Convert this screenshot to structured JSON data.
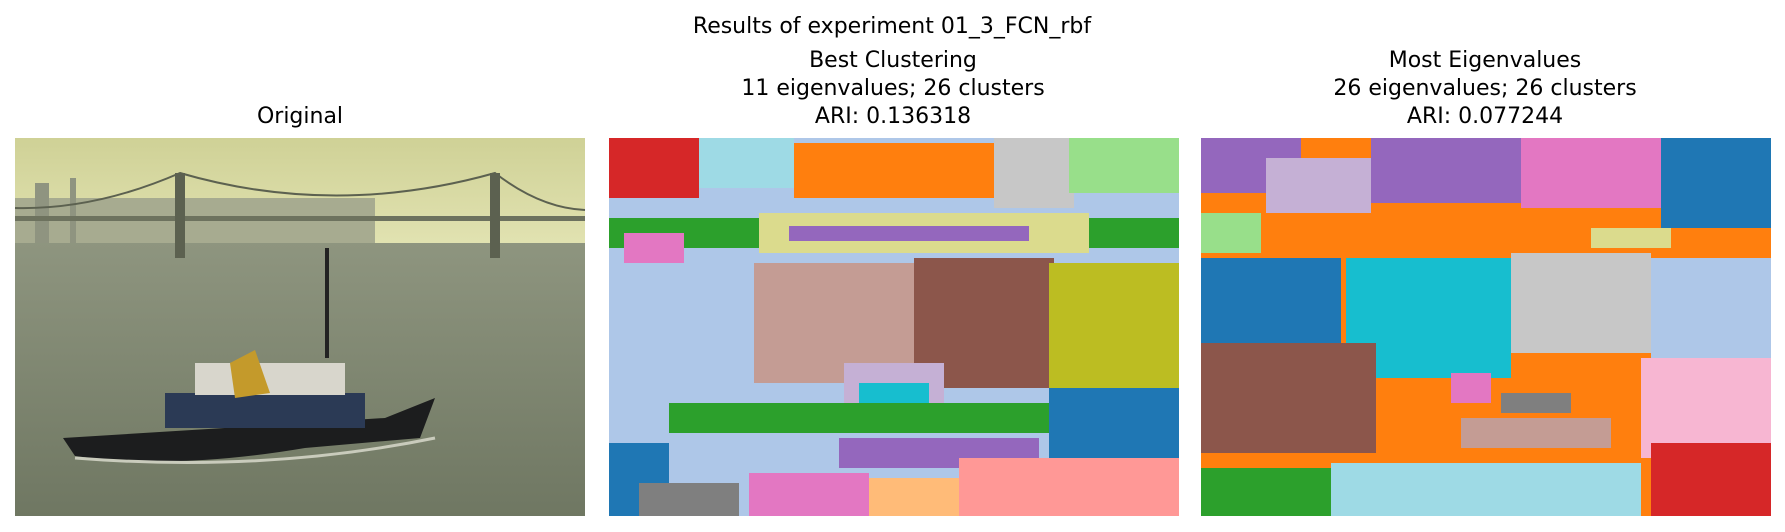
{
  "title": "Results of experiment 01_3_FCN_rbf",
  "panels": [
    {
      "title_lines": [
        "Original"
      ]
    },
    {
      "title_lines": [
        "Best Clustering",
        "11 eigenvalues; 26 clusters",
        "ARI: 0.136318"
      ]
    },
    {
      "title_lines": [
        "Most Eigenvalues",
        "26 eigenvalues; 26 clusters",
        "ARI: 0.077244"
      ]
    }
  ]
}
